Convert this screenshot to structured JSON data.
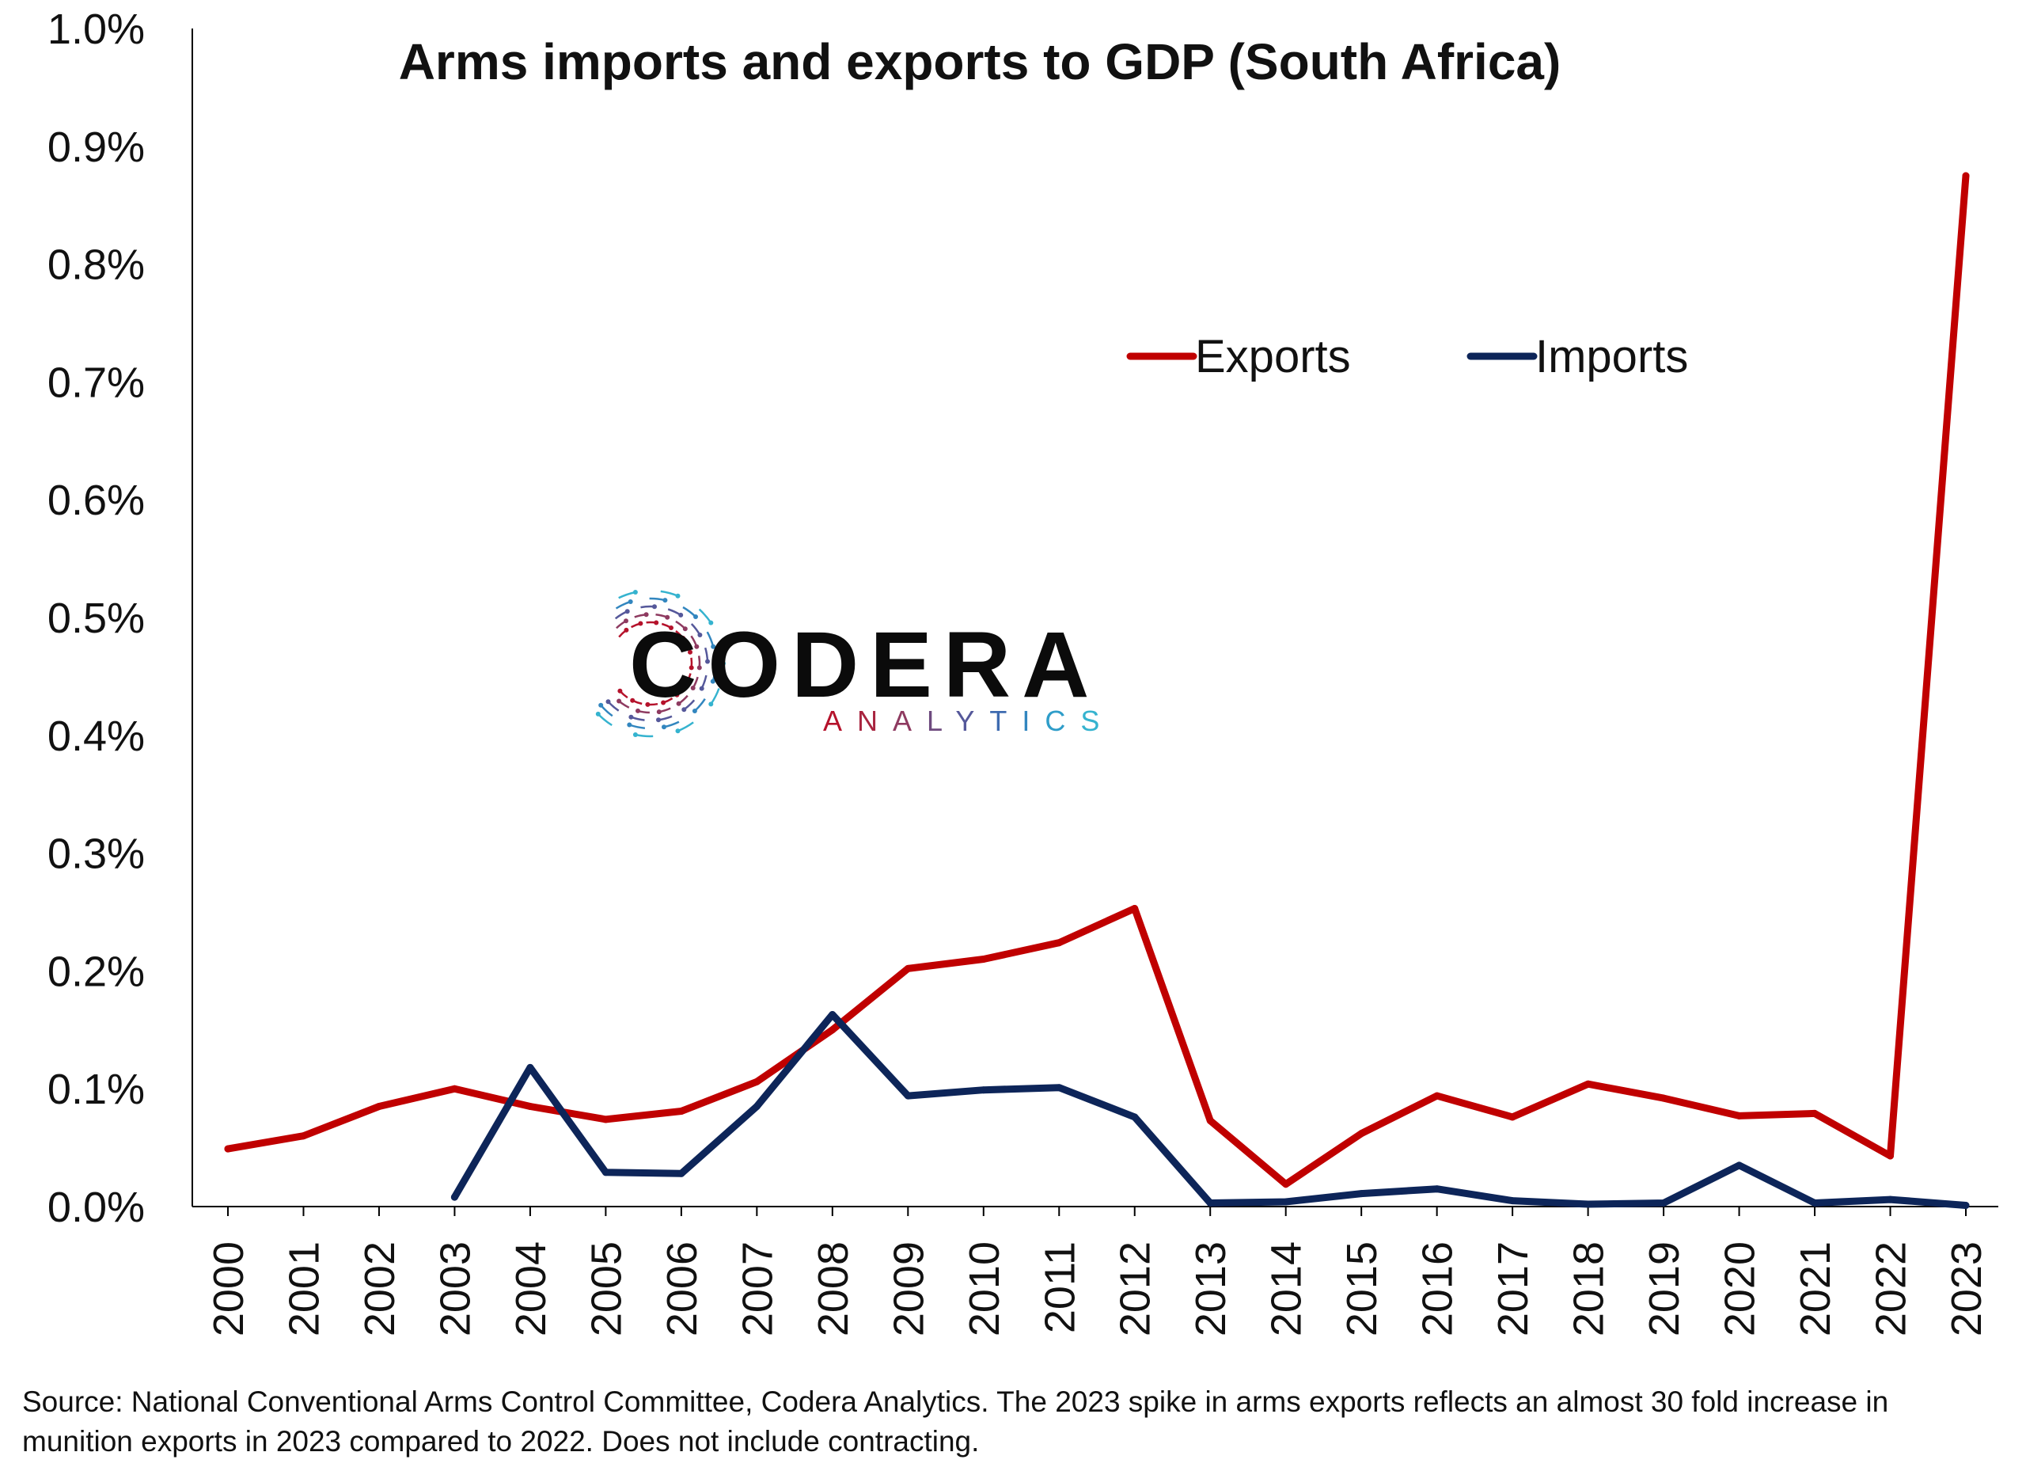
{
  "chart_data": {
    "type": "line",
    "title": "Arms imports and exports to GDP (South Africa)",
    "xlabel": "",
    "ylabel": "",
    "categories": [
      "2000",
      "2001",
      "2002",
      "2003",
      "2004",
      "2005",
      "2006",
      "2007",
      "2008",
      "2009",
      "2010",
      "2011",
      "2012",
      "2013",
      "2014",
      "2015",
      "2016",
      "2017",
      "2018",
      "2019",
      "2020",
      "2021",
      "2022",
      "2023"
    ],
    "ylim": [
      0,
      1.0
    ],
    "yticks": [
      0.0,
      0.1,
      0.2,
      0.3,
      0.4,
      0.5,
      0.6,
      0.7,
      0.8,
      0.9,
      1.0
    ],
    "ytick_labels": [
      "0.0%",
      "0.1%",
      "0.2%",
      "0.3%",
      "0.4%",
      "0.5%",
      "0.6%",
      "0.7%",
      "0.8%",
      "0.9%",
      "1.0%"
    ],
    "grid": false,
    "legend_position": "top-right",
    "series": [
      {
        "name": "Exports",
        "color": "#c00000",
        "values": [
          0.049,
          0.06,
          0.085,
          0.1,
          0.085,
          0.074,
          0.081,
          0.106,
          0.15,
          0.202,
          0.21,
          0.224,
          0.253,
          0.073,
          0.019,
          0.062,
          0.094,
          0.076,
          0.104,
          0.092,
          0.077,
          0.079,
          0.043,
          0.875
        ]
      },
      {
        "name": "Imports",
        "color": "#0d2559",
        "values": [
          null,
          null,
          null,
          0.008,
          0.118,
          0.029,
          0.028,
          0.085,
          0.163,
          0.094,
          0.099,
          0.101,
          0.076,
          0.003,
          0.004,
          0.011,
          0.015,
          0.005,
          0.002,
          0.003,
          0.035,
          0.003,
          0.006,
          0.001
        ]
      }
    ]
  },
  "logo": {
    "name": "CODERA",
    "tagline": "ANALYTICS"
  },
  "source_note": "Source: National Conventional Arms Control Committee, Codera Analytics. The 2023 spike in arms exports reflects an almost 30 fold increase in munition exports in 2023 compared to 2022. Does not include contracting."
}
